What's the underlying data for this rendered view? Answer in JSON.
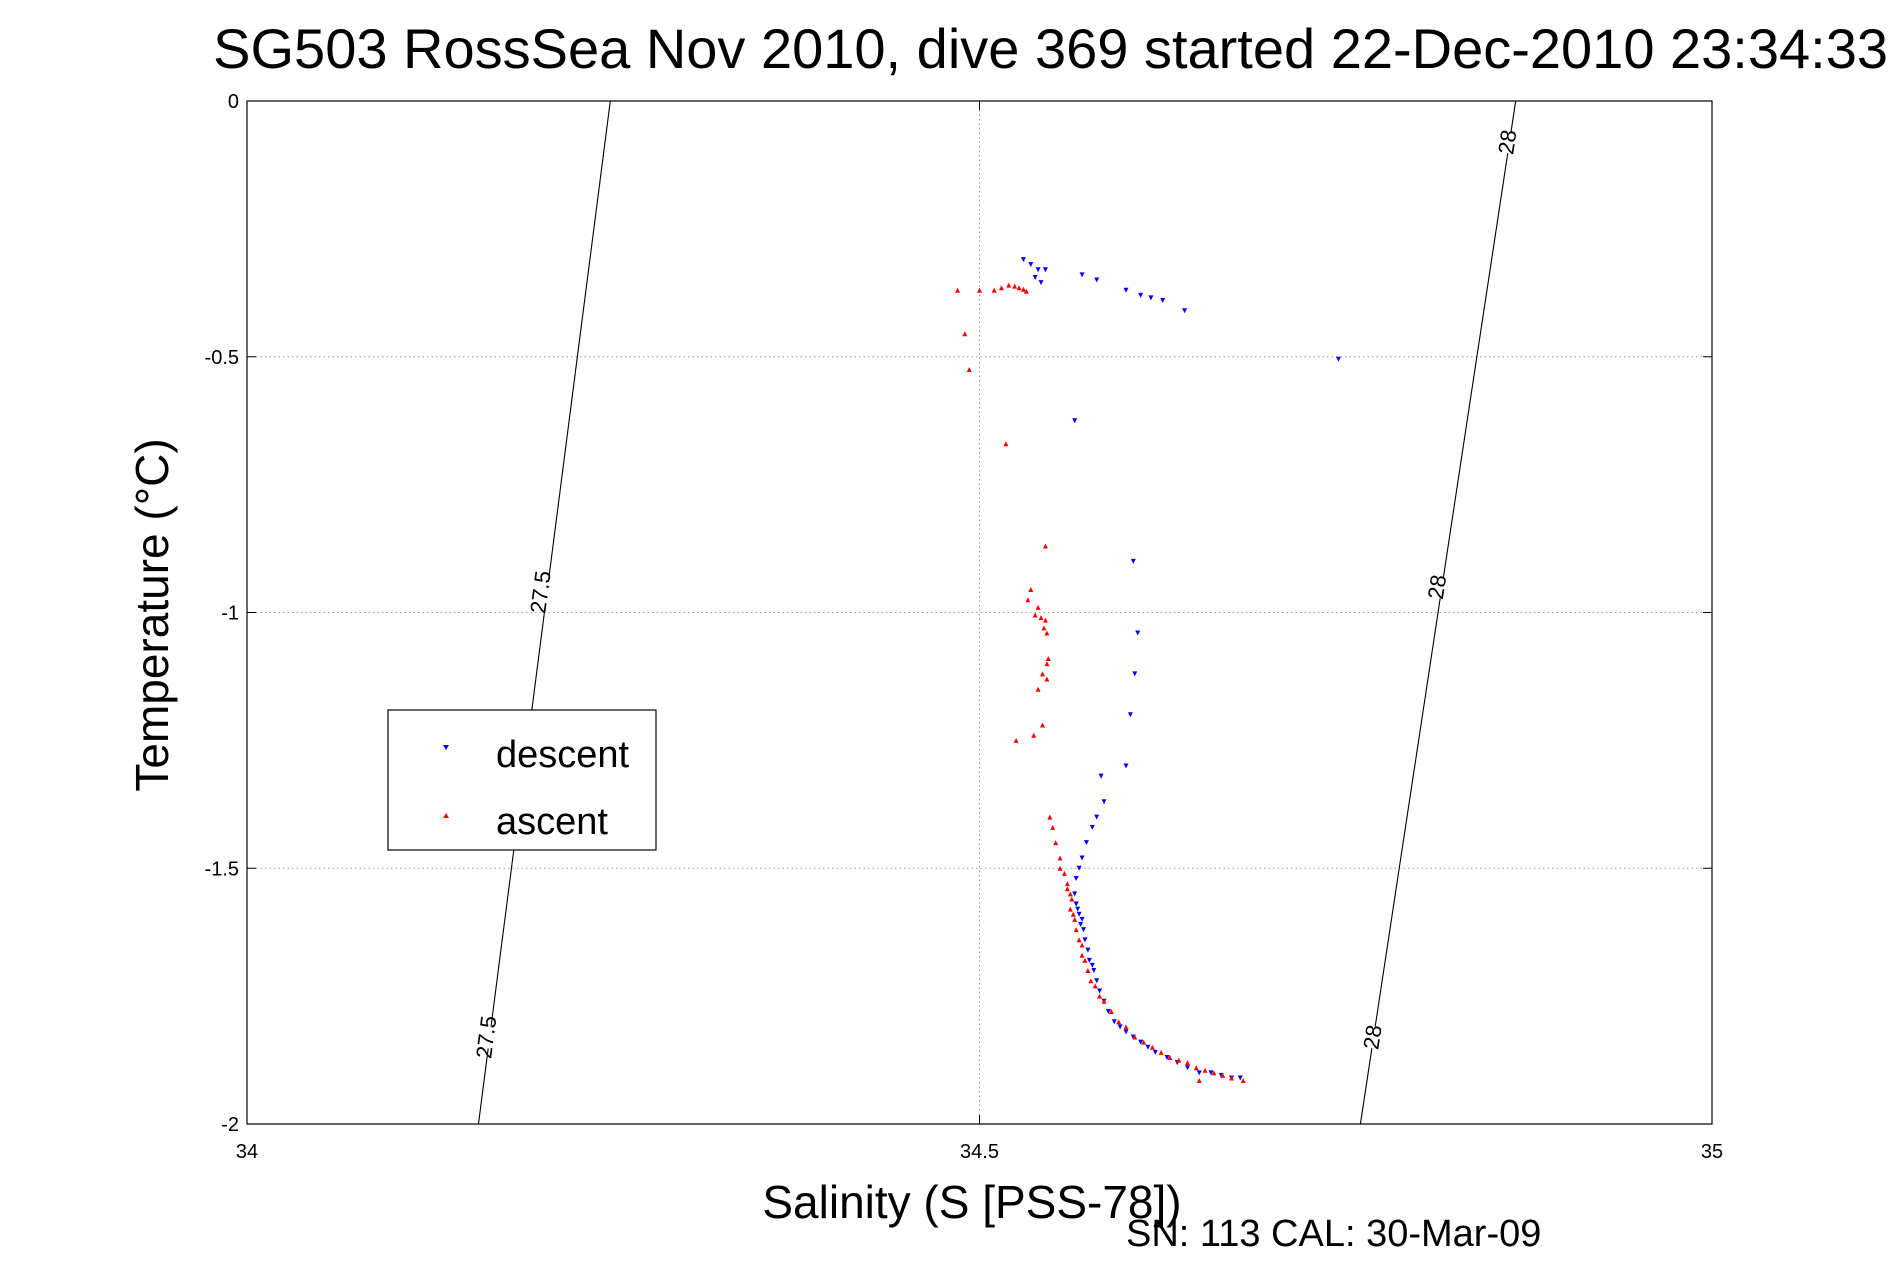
{
  "chart_data": {
    "type": "scatter",
    "title": "SG503 RossSea Nov 2010, dive 369 started 22-Dec-2010 23:34:33",
    "xlabel": "Salinity (S [PSS-78])",
    "ylabel": "Temperature (°C)",
    "footer": "SN: 113  CAL: 30-Mar-09",
    "xlim": [
      34,
      35
    ],
    "ylim": [
      -2,
      0
    ],
    "x_ticks": [
      {
        "value": 34,
        "label": "34"
      },
      {
        "value": 34.5,
        "label": "34.5"
      },
      {
        "value": 35,
        "label": "35"
      }
    ],
    "y_ticks": [
      {
        "value": 0,
        "label": "0"
      },
      {
        "value": -0.5,
        "label": "-0.5"
      },
      {
        "value": -1,
        "label": "-1"
      },
      {
        "value": -1.5,
        "label": "-1.5"
      },
      {
        "value": -2,
        "label": "-2"
      }
    ],
    "grid": true,
    "grid_style": "dotted",
    "legend": {
      "placement": "middle-left",
      "entries": [
        {
          "label": "descent",
          "marker": "triangle-down",
          "color": "#0000ff"
        },
        {
          "label": "ascent",
          "marker": "triangle-up",
          "color": "#ff0000"
        }
      ]
    },
    "contours": [
      {
        "level_label": "27.5",
        "points": [
          [
            34.248,
            0
          ],
          [
            34.158,
            -2
          ]
        ],
        "labels": [
          {
            "text": "27.5",
            "x": 34.2,
            "y": -0.96
          },
          {
            "text": "27.5",
            "x": 34.163,
            "y": -1.83
          }
        ]
      },
      {
        "level_label": "28",
        "points": [
          [
            34.866,
            0
          ],
          [
            34.76,
            -2
          ]
        ],
        "labels": [
          {
            "text": "28",
            "x": 34.86,
            "y": -0.08
          },
          {
            "text": "28",
            "x": 34.812,
            "y": -0.95
          },
          {
            "text": "28",
            "x": 34.768,
            "y": -1.83
          }
        ]
      }
    ],
    "series": [
      {
        "name": "descent",
        "marker": "triangle-down",
        "color": "#0000ff",
        "points": [
          [
            34.53,
            -0.31
          ],
          [
            34.535,
            -0.32
          ],
          [
            34.54,
            -0.33
          ],
          [
            34.545,
            -0.33
          ],
          [
            34.538,
            -0.345
          ],
          [
            34.542,
            -0.355
          ],
          [
            34.57,
            -0.34
          ],
          [
            34.58,
            -0.35
          ],
          [
            34.6,
            -0.37
          ],
          [
            34.61,
            -0.38
          ],
          [
            34.617,
            -0.385
          ],
          [
            34.625,
            -0.39
          ],
          [
            34.64,
            -0.41
          ],
          [
            34.745,
            -0.505
          ],
          [
            34.565,
            -0.625
          ],
          [
            34.605,
            -0.9
          ],
          [
            34.608,
            -1.04
          ],
          [
            34.606,
            -1.12
          ],
          [
            34.603,
            -1.2
          ],
          [
            34.6,
            -1.3
          ],
          [
            34.583,
            -1.32
          ],
          [
            34.585,
            -1.37
          ],
          [
            34.58,
            -1.4
          ],
          [
            34.577,
            -1.42
          ],
          [
            34.573,
            -1.45
          ],
          [
            34.57,
            -1.48
          ],
          [
            34.568,
            -1.5
          ],
          [
            34.566,
            -1.52
          ],
          [
            34.565,
            -1.55
          ],
          [
            34.566,
            -1.57
          ],
          [
            34.567,
            -1.58
          ],
          [
            34.568,
            -1.59
          ],
          [
            34.57,
            -1.6
          ],
          [
            34.569,
            -1.61
          ],
          [
            34.571,
            -1.62
          ],
          [
            34.572,
            -1.64
          ],
          [
            34.574,
            -1.66
          ],
          [
            34.575,
            -1.68
          ],
          [
            34.577,
            -1.69
          ],
          [
            34.578,
            -1.7
          ],
          [
            34.58,
            -1.72
          ],
          [
            34.582,
            -1.74
          ],
          [
            34.585,
            -1.76
          ],
          [
            34.588,
            -1.78
          ],
          [
            34.592,
            -1.8
          ],
          [
            34.596,
            -1.81
          ],
          [
            34.6,
            -1.82
          ],
          [
            34.605,
            -1.83
          ],
          [
            34.61,
            -1.84
          ],
          [
            34.615,
            -1.85
          ],
          [
            34.62,
            -1.86
          ],
          [
            34.628,
            -1.87
          ],
          [
            34.635,
            -1.88
          ],
          [
            34.642,
            -1.89
          ],
          [
            34.65,
            -1.9
          ],
          [
            34.658,
            -1.9
          ],
          [
            34.665,
            -1.905
          ],
          [
            34.672,
            -1.91
          ],
          [
            34.678,
            -1.91
          ]
        ]
      },
      {
        "name": "ascent",
        "marker": "triangle-up",
        "color": "#ff0000",
        "points": [
          [
            34.485,
            -0.37
          ],
          [
            34.5,
            -0.37
          ],
          [
            34.51,
            -0.37
          ],
          [
            34.515,
            -0.365
          ],
          [
            34.52,
            -0.36
          ],
          [
            34.524,
            -0.362
          ],
          [
            34.527,
            -0.365
          ],
          [
            34.53,
            -0.368
          ],
          [
            34.532,
            -0.372
          ],
          [
            34.49,
            -0.455
          ],
          [
            34.493,
            -0.525
          ],
          [
            34.518,
            -0.67
          ],
          [
            34.545,
            -0.87
          ],
          [
            34.535,
            -0.955
          ],
          [
            34.533,
            -0.975
          ],
          [
            34.54,
            -0.99
          ],
          [
            34.538,
            -1.005
          ],
          [
            34.542,
            -1.01
          ],
          [
            34.545,
            -1.015
          ],
          [
            34.544,
            -1.03
          ],
          [
            34.546,
            -1.04
          ],
          [
            34.547,
            -1.09
          ],
          [
            34.546,
            -1.1
          ],
          [
            34.543,
            -1.12
          ],
          [
            34.546,
            -1.13
          ],
          [
            34.54,
            -1.15
          ],
          [
            34.543,
            -1.22
          ],
          [
            34.525,
            -1.25
          ],
          [
            34.537,
            -1.24
          ],
          [
            34.548,
            -1.4
          ],
          [
            34.55,
            -1.42
          ],
          [
            34.552,
            -1.45
          ],
          [
            34.555,
            -1.48
          ],
          [
            34.555,
            -1.5
          ],
          [
            34.558,
            -1.51
          ],
          [
            34.56,
            -1.53
          ],
          [
            34.56,
            -1.54
          ],
          [
            34.562,
            -1.55
          ],
          [
            34.563,
            -1.56
          ],
          [
            34.562,
            -1.58
          ],
          [
            34.564,
            -1.59
          ],
          [
            34.565,
            -1.6
          ],
          [
            34.566,
            -1.62
          ],
          [
            34.568,
            -1.64
          ],
          [
            34.57,
            -1.65
          ],
          [
            34.57,
            -1.67
          ],
          [
            34.572,
            -1.68
          ],
          [
            34.574,
            -1.7
          ],
          [
            34.576,
            -1.72
          ],
          [
            34.579,
            -1.73
          ],
          [
            34.582,
            -1.75
          ],
          [
            34.585,
            -1.76
          ],
          [
            34.59,
            -1.78
          ],
          [
            34.595,
            -1.8
          ],
          [
            34.6,
            -1.81
          ],
          [
            34.606,
            -1.83
          ],
          [
            34.612,
            -1.84
          ],
          [
            34.618,
            -1.85
          ],
          [
            34.624,
            -1.86
          ],
          [
            34.63,
            -1.87
          ],
          [
            34.636,
            -1.875
          ],
          [
            34.642,
            -1.88
          ],
          [
            34.648,
            -1.89
          ],
          [
            34.654,
            -1.895
          ],
          [
            34.66,
            -1.9
          ],
          [
            34.666,
            -1.905
          ],
          [
            34.672,
            -1.91
          ],
          [
            34.68,
            -1.915
          ],
          [
            34.65,
            -1.915
          ]
        ]
      }
    ]
  }
}
